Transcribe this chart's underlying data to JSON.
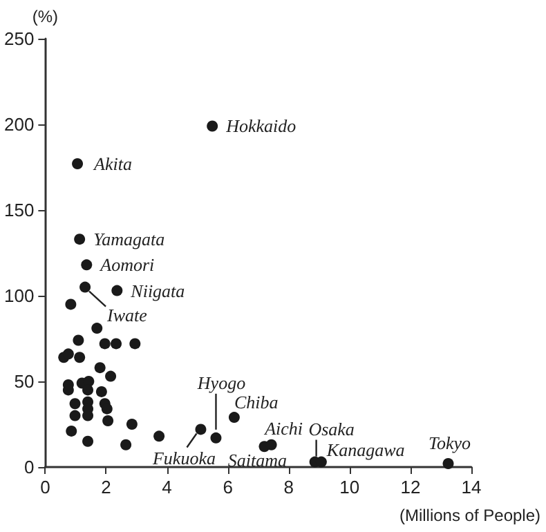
{
  "chart_data": {
    "type": "scatter",
    "ylabel": "(%)",
    "xlabel": "(Millions of People)",
    "xlim": [
      0,
      14
    ],
    "xticks": [
      0,
      2,
      4,
      6,
      8,
      10,
      12,
      14
    ],
    "ylim": [
      0,
      250
    ],
    "yticks": [
      0,
      50,
      100,
      150,
      200,
      250
    ],
    "marker": "circle",
    "series": [
      {
        "color": "#1a1a1a",
        "x": [
          5.49,
          1.06,
          1.13,
          1.36,
          1.31,
          2.36,
          0.84,
          1.7,
          1.09,
          1.96,
          2.33,
          2.95,
          0.61,
          0.76,
          1.13,
          1.8,
          2.15,
          0.76,
          0.76,
          1.21,
          1.43,
          1.4,
          1.85,
          0.98,
          1.4,
          1.4,
          1.96,
          2.03,
          0.98,
          1.4,
          2.06,
          2.85,
          0.86,
          1.4,
          2.65,
          3.74,
          5.11,
          5.61,
          6.21,
          7.2,
          7.43,
          8.86,
          9.07,
          13.24
        ],
        "values": [
          199,
          177,
          133,
          118,
          105,
          103,
          95,
          81,
          74,
          72,
          72,
          72,
          64,
          66,
          64,
          58,
          53,
          48,
          45,
          49,
          50,
          45,
          44,
          37,
          38,
          34,
          37,
          34,
          30,
          30,
          27,
          25,
          21,
          15,
          13,
          18,
          22,
          17,
          29,
          12,
          13,
          3,
          3,
          2
        ]
      }
    ],
    "annotations": [
      {
        "text": "Hokkaido",
        "x": 5.49,
        "y": 199
      },
      {
        "text": "Akita",
        "x": 1.06,
        "y": 177
      },
      {
        "text": "Yamagata",
        "x": 1.13,
        "y": 133
      },
      {
        "text": "Aomori",
        "x": 1.36,
        "y": 118
      },
      {
        "text": "Niigata",
        "x": 2.36,
        "y": 103
      },
      {
        "text": "Iwate",
        "x": 1.31,
        "y": 105
      },
      {
        "text": "Hyogo",
        "x": 5.61,
        "y": 17
      },
      {
        "text": "Chiba",
        "x": 6.21,
        "y": 29
      },
      {
        "text": "Fukuoka",
        "x": 5.11,
        "y": 22
      },
      {
        "text": "Saitama",
        "x": 7.2,
        "y": 12
      },
      {
        "text": "Aichi",
        "x": 7.43,
        "y": 13
      },
      {
        "text": "Osaka",
        "x": 8.86,
        "y": 3
      },
      {
        "text": "Kanagawa",
        "x": 9.07,
        "y": 3
      },
      {
        "text": "Tokyo",
        "x": 13.24,
        "y": 2
      }
    ]
  }
}
